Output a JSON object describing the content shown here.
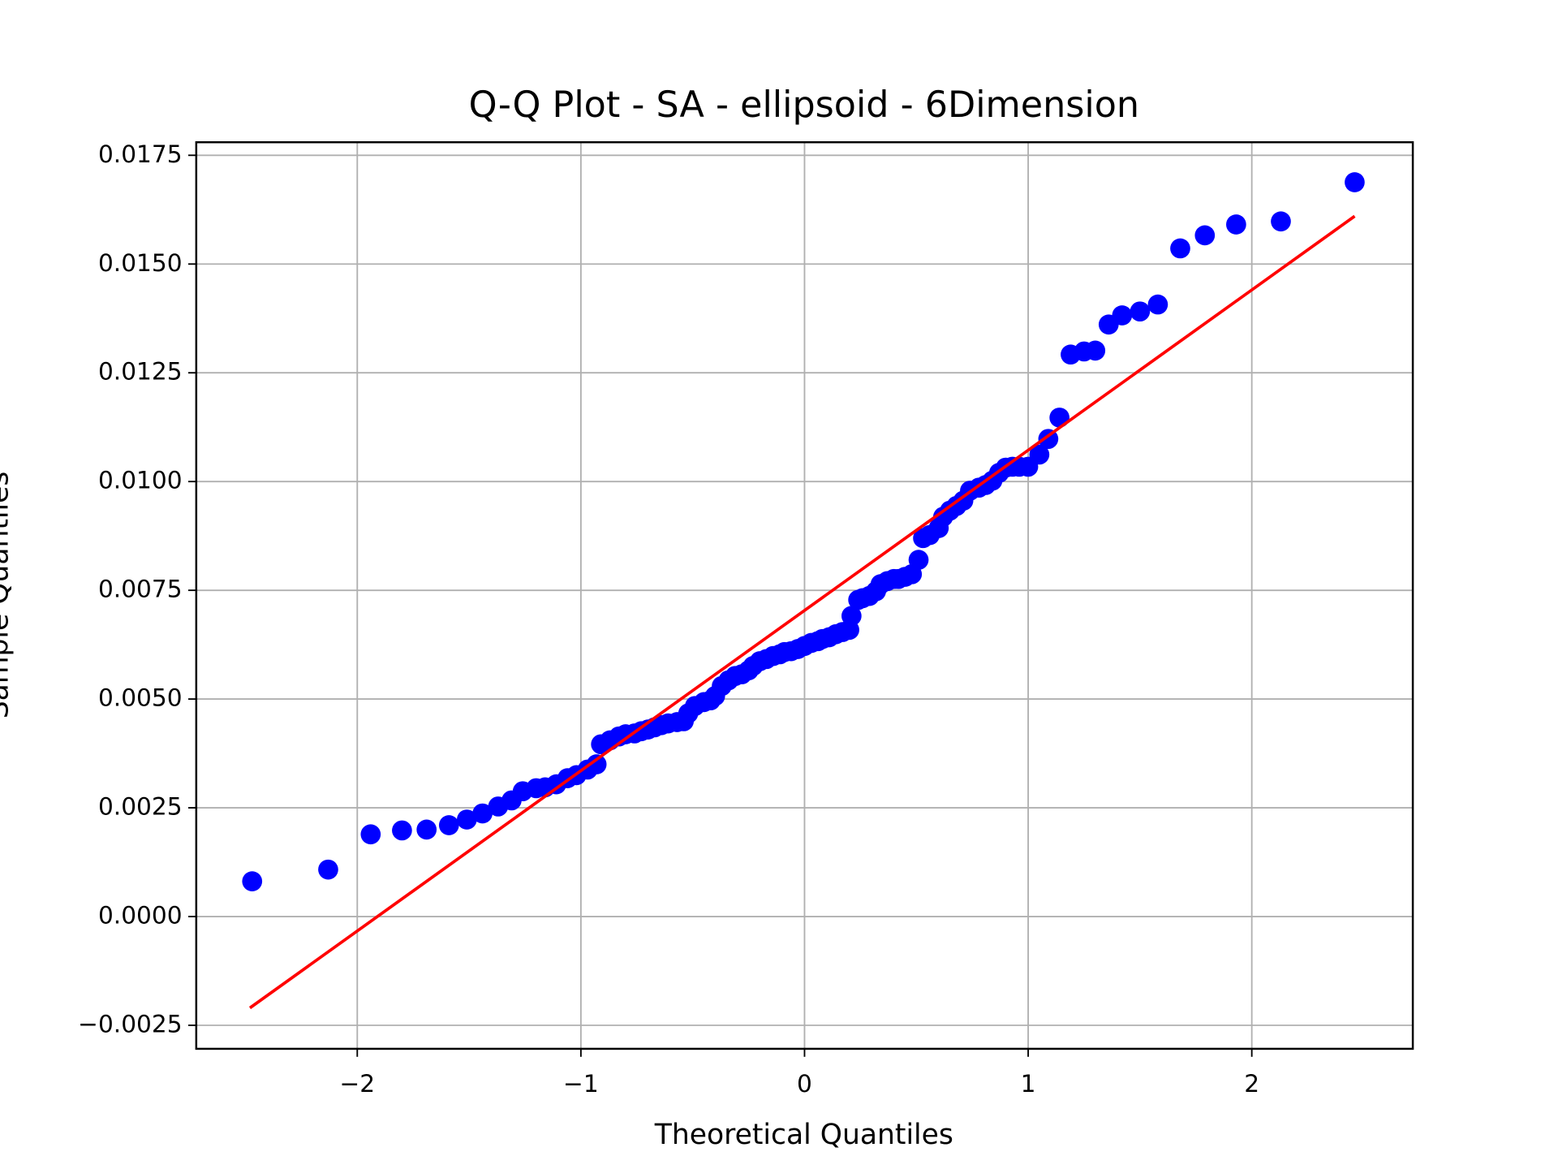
{
  "chart_data": {
    "type": "scatter",
    "title": "Q-Q Plot - SA - ellipsoid - 6Dimension",
    "x_label": "Theoretical Quantiles",
    "y_label": "Sample Quantiles",
    "xlim": [
      -2.72,
      2.72
    ],
    "ylim": [
      -0.00304,
      0.0178
    ],
    "xticks": [
      {
        "value": -2,
        "label": "−2"
      },
      {
        "value": -1,
        "label": "−1"
      },
      0,
      1,
      2
    ],
    "yticks": [
      {
        "value": -0.0025,
        "label": "−0.0025"
      },
      {
        "value": 0,
        "label": "0.0000"
      },
      0.0025,
      {
        "value": 0.005,
        "label": "0.0050"
      },
      {
        "value": 0.0075,
        "label": "0.0075"
      },
      {
        "value": 0.01,
        "label": "0.0100"
      },
      0.0125,
      {
        "value": 0.015,
        "label": "0.0150"
      },
      0.0175
    ],
    "grid": true,
    "series": [
      {
        "color": "#0000ff",
        "x": [
          -2.47,
          -2.13,
          -1.94,
          -1.8,
          -1.69,
          -1.59,
          -1.51,
          -1.44,
          -1.37,
          -1.31,
          -1.26,
          -1.2,
          -1.16,
          -1.11,
          -1.06,
          -1.02,
          -0.97,
          -0.93,
          -0.91,
          -0.87,
          -0.83,
          -0.8,
          -0.76,
          -0.73,
          -0.7,
          -0.67,
          -0.64,
          -0.61,
          -0.57,
          -0.54,
          -0.52,
          -0.49,
          -0.45,
          -0.42,
          -0.4,
          -0.37,
          -0.34,
          -0.31,
          -0.28,
          -0.25,
          -0.23,
          -0.2,
          -0.17,
          -0.14,
          -0.11,
          -0.09,
          -0.06,
          -0.03,
          0.0,
          0.03,
          0.06,
          0.08,
          0.11,
          0.14,
          0.17,
          0.2,
          0.21,
          0.24,
          0.26,
          0.29,
          0.32,
          0.34,
          0.37,
          0.4,
          0.42,
          0.45,
          0.48,
          0.51,
          0.53,
          0.56,
          0.6,
          0.62,
          0.65,
          0.68,
          0.71,
          0.74,
          0.78,
          0.81,
          0.84,
          0.87,
          0.9,
          0.93,
          0.96,
          1.0,
          1.05,
          1.09,
          1.14,
          1.19,
          1.25,
          1.3,
          1.36,
          1.42,
          1.5,
          1.58,
          1.68,
          1.79,
          1.93,
          2.13,
          2.46
        ],
        "values": [
          0.00081,
          0.00108,
          0.00189,
          0.00198,
          0.002,
          0.0021,
          0.00223,
          0.00237,
          0.00253,
          0.00267,
          0.00288,
          0.00295,
          0.00297,
          0.00304,
          0.00318,
          0.00325,
          0.00338,
          0.0035,
          0.00396,
          0.00405,
          0.00414,
          0.00419,
          0.00421,
          0.00426,
          0.0043,
          0.00435,
          0.0044,
          0.00444,
          0.00447,
          0.00449,
          0.00467,
          0.00484,
          0.00493,
          0.00497,
          0.00507,
          0.0053,
          0.00543,
          0.00553,
          0.00557,
          0.00566,
          0.00576,
          0.00587,
          0.00592,
          0.00599,
          0.00603,
          0.00608,
          0.0061,
          0.00615,
          0.00622,
          0.00629,
          0.00633,
          0.00638,
          0.00642,
          0.00649,
          0.00654,
          0.00659,
          0.00691,
          0.00728,
          0.00732,
          0.00737,
          0.00748,
          0.00764,
          0.00771,
          0.00776,
          0.00776,
          0.00781,
          0.00787,
          0.0082,
          0.0087,
          0.00877,
          0.00893,
          0.00919,
          0.00933,
          0.00944,
          0.00956,
          0.00979,
          0.00986,
          0.00992,
          0.01002,
          0.0102,
          0.01032,
          0.01034,
          0.01034,
          0.01034,
          0.01062,
          0.01098,
          0.01147,
          0.01292,
          0.01299,
          0.01301,
          0.01361,
          0.01382,
          0.01391,
          0.01407,
          0.01536,
          0.01566,
          0.01591,
          0.01598,
          0.01688
        ]
      }
    ],
    "fit_line": {
      "color": "#ff0000",
      "x": [
        -2.48,
        2.46
      ],
      "values": [
        -0.0021,
        0.0161
      ]
    }
  }
}
